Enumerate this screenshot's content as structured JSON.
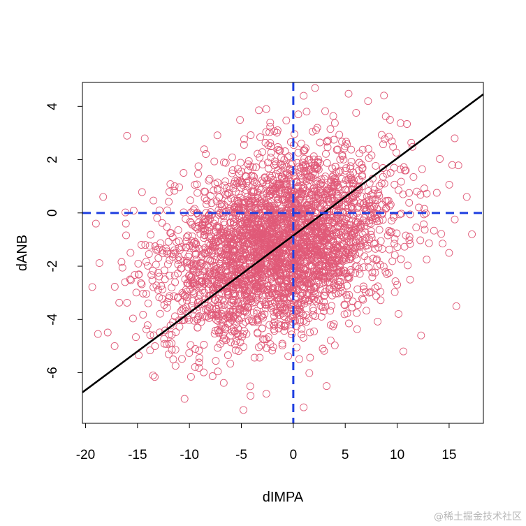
{
  "chart_data": {
    "type": "scatter",
    "title": "",
    "xlabel": "dIMPA",
    "ylabel": "dANB",
    "xlim": [
      -20.3,
      18.3
    ],
    "ylim": [
      -7.9,
      4.9
    ],
    "xticks": [
      -20,
      -15,
      -10,
      -5,
      0,
      5,
      10,
      15
    ],
    "yticks": [
      -6,
      -4,
      -2,
      0,
      2,
      4
    ],
    "xtick_labels": [
      "-20",
      "-15",
      "-10",
      "-5",
      "0",
      "5",
      "10",
      "15"
    ],
    "ytick_labels": [
      "-6",
      "-4",
      "-2",
      "0",
      "2",
      "4"
    ],
    "point_color": "#E05A78",
    "reference_line_color": "#1F3FE0",
    "fit_line_color": "#000000",
    "reference_lines": {
      "vertical_x": 0,
      "horizontal_y": 0,
      "style": "dashed"
    },
    "regression_line": {
      "intercept": -0.85,
      "slope": 0.29
    },
    "scatter_distribution": {
      "n_points": 3200,
      "x_mean": -1.5,
      "x_sd": 5.4,
      "y_mean": -1.2,
      "y_sd": 1.75,
      "correlation": 0.3
    },
    "outlier_points": [
      {
        "x": -16,
        "y": 2.9
      },
      {
        "x": -14.3,
        "y": 2.8
      },
      {
        "x": -18.3,
        "y": 0.6
      },
      {
        "x": -19,
        "y": -0.4
      },
      {
        "x": -17.2,
        "y": -5.0
      },
      {
        "x": -13.5,
        "y": -6.1
      },
      {
        "x": -4.8,
        "y": -7.4
      },
      {
        "x": 1.0,
        "y": -7.3
      },
      {
        "x": 3.2,
        "y": -6.5
      },
      {
        "x": 17.2,
        "y": -0.8
      },
      {
        "x": 16.7,
        "y": 0.6
      },
      {
        "x": 15.3,
        "y": 1.8
      },
      {
        "x": 15.7,
        "y": -3.5
      },
      {
        "x": 12.3,
        "y": -4.6
      },
      {
        "x": 10.6,
        "y": -5.2
      },
      {
        "x": 1.0,
        "y": 4.4
      },
      {
        "x": 7.2,
        "y": 4.2
      },
      {
        "x": -2.6,
        "y": 3.9
      },
      {
        "x": 15.0,
        "y": -1.5
      },
      {
        "x": -16.2,
        "y": -2.6
      }
    ]
  },
  "watermark": "@稀土掘金技术社区"
}
